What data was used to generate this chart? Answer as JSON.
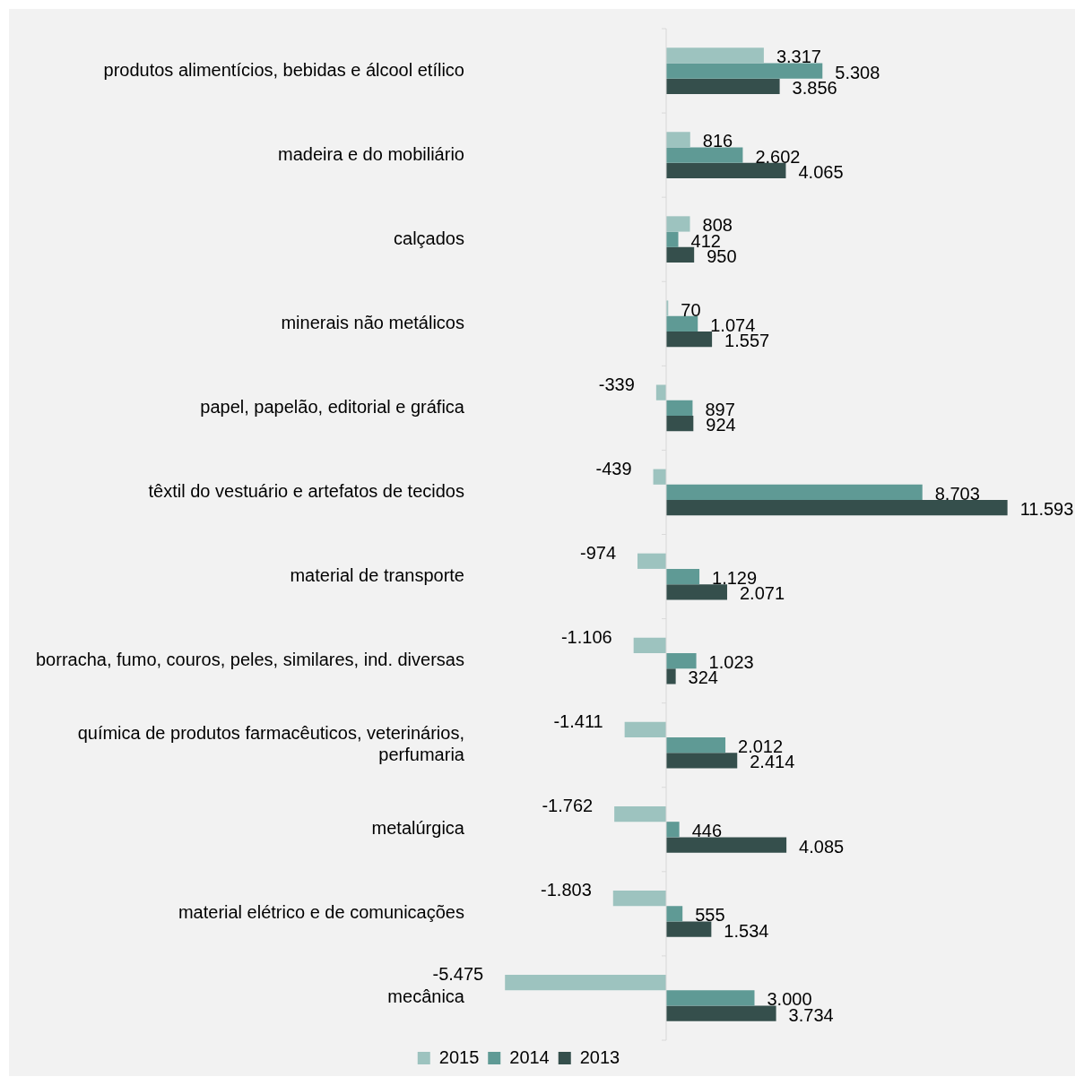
{
  "chart_data": {
    "type": "bar",
    "orientation": "horizontal",
    "categories": [
      "produtos alimentícios, bebidas e álcool etílico",
      "madeira e do mobiliário",
      "calçados",
      "minerais não metálicos",
      "papel, papelão, editorial e gráfica",
      "têxtil do vestuário e artefatos de tecidos",
      "material de transporte",
      "borracha, fumo, couros, peles, similares, ind. diversas",
      "química de produtos farmacêuticos, veterinários, perfumaria",
      "metalúrgica",
      "material elétrico e de comunicações",
      "mecânica"
    ],
    "series": [
      {
        "name": "2015",
        "color": "#9dc3bf",
        "values": [
          3317,
          816,
          808,
          70,
          -339,
          -439,
          -974,
          -1106,
          -1411,
          -1762,
          -1803,
          -5475
        ],
        "value_labels": [
          "3.317",
          "816",
          "808",
          "70",
          "-339",
          "-439",
          "-974",
          "-1.106",
          "-1.411",
          "-1.762",
          "-1.803",
          "-5.475"
        ]
      },
      {
        "name": "2014",
        "color": "#5f9a95",
        "values": [
          5308,
          2602,
          412,
          1074,
          897,
          8703,
          1129,
          1023,
          2012,
          446,
          555,
          3000
        ],
        "value_labels": [
          "5.308",
          "2.602",
          "412",
          "1.074",
          "897",
          "8.703",
          "1.129",
          "1.023",
          "2.012",
          "446",
          "555",
          "3.000"
        ]
      },
      {
        "name": "2013",
        "color": "#354f4c",
        "values": [
          3856,
          4065,
          950,
          1557,
          924,
          11593,
          2071,
          324,
          2414,
          4085,
          1534,
          3734
        ],
        "value_labels": [
          "3.856",
          "4.065",
          "950",
          "1.557",
          "924",
          "11.593",
          "2.071",
          "324",
          "2.414",
          "4.085",
          "1.534",
          "3.734"
        ]
      }
    ],
    "tick_labels": "y",
    "grid": false,
    "legend": "bottom"
  }
}
